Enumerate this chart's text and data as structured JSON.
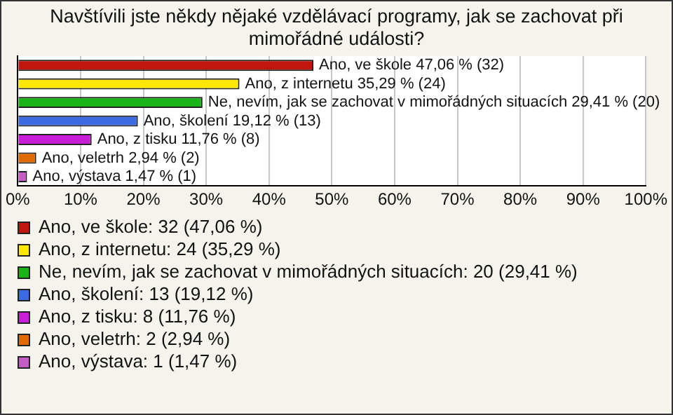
{
  "chart_data": {
    "type": "bar",
    "orientation": "horizontal",
    "stacked": true,
    "title": "Navštívili jste někdy nějaké vzdělávací programy, jak se zachovat při mimořádné události?",
    "categories": [
      null,
      null,
      null,
      null,
      null,
      null,
      null
    ],
    "series": [
      {
        "name": "Ano, ve škole: 32 (47,06 %)",
        "color": "#c0160e",
        "values": [
          47.06,
          null,
          null,
          null,
          null,
          null,
          null
        ],
        "value_labels": [
          "Ano, ve škole 47,06 % (32)",
          null,
          null,
          null,
          null,
          null,
          null
        ]
      },
      {
        "name": "Ano, z internetu: 24 (35,29 %)",
        "color": "#ffe800",
        "values": [
          null,
          35.29,
          null,
          null,
          null,
          null,
          null
        ],
        "value_labels": [
          null,
          "Ano, z internetu 35,29 % (24)",
          null,
          null,
          null,
          null,
          null
        ]
      },
      {
        "name": "Ne, nevím, jak se zachovat v mimořádných situacích: 20 (29,41 %)",
        "color": "#18b418",
        "values": [
          null,
          null,
          29.41,
          null,
          null,
          null,
          null
        ],
        "value_labels": [
          null,
          null,
          "Ne, nevím, jak se zachovat v mimořádných situacích 29,41 % (20)",
          null,
          null,
          null,
          null
        ]
      },
      {
        "name": "Ano, školení: 13 (19,12 %)",
        "color": "#3c6ae0",
        "values": [
          null,
          null,
          null,
          19.12,
          null,
          null,
          null
        ],
        "value_labels": [
          null,
          null,
          null,
          "Ano, školení 19,12 % (13)",
          null,
          null,
          null
        ]
      },
      {
        "name": "Ano, z tisku: 8 (11,76 %)",
        "color": "#c81ed8",
        "values": [
          null,
          null,
          null,
          null,
          11.76,
          null,
          null
        ],
        "value_labels": [
          null,
          null,
          null,
          null,
          "Ano, z tisku 11,76 % (8)",
          null,
          null
        ]
      },
      {
        "name": "Ano, veletrh: 2 (2,94 %)",
        "color": "#e06a00",
        "values": [
          null,
          null,
          null,
          null,
          null,
          2.94,
          null
        ],
        "value_labels": [
          null,
          null,
          null,
          null,
          null,
          "Ano, veletrh 2,94 % (2)",
          null
        ]
      },
      {
        "name": "Ano, výstava: 1 (1,47 %)",
        "color": "#c45cc4",
        "values": [
          null,
          null,
          null,
          null,
          null,
          null,
          1.47
        ],
        "value_labels": [
          null,
          null,
          null,
          null,
          null,
          null,
          "Ano, výstava 1,47 % (1)"
        ]
      }
    ],
    "xlim": [
      0,
      100
    ],
    "xticks": [
      {
        "value": 0,
        "label": "0%"
      },
      {
        "value": 10,
        "label": "10%"
      },
      {
        "value": 20,
        "label": "20%"
      },
      {
        "value": 30,
        "label": "30%"
      },
      {
        "value": 40,
        "label": "40%"
      },
      {
        "value": 50,
        "label": "50%"
      },
      {
        "value": 60,
        "label": "60%"
      },
      {
        "value": 70,
        "label": "70%"
      },
      {
        "value": 80,
        "label": "80%"
      },
      {
        "value": 90,
        "label": "90%"
      },
      {
        "value": 100,
        "label": "100%"
      }
    ],
    "grid": "x",
    "tick_labels": "x",
    "legend": "bottom"
  }
}
